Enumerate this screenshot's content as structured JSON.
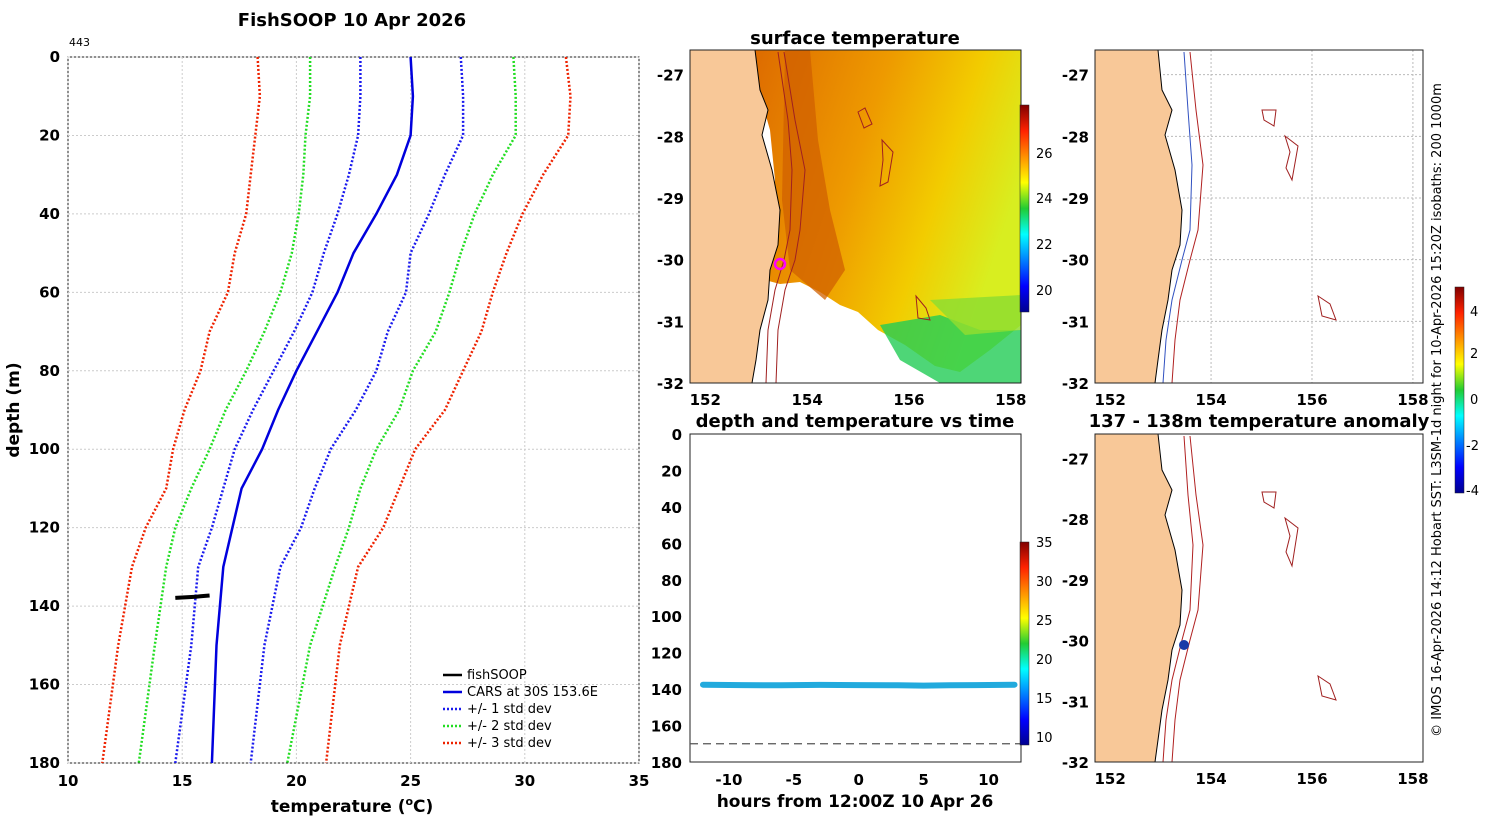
{
  "header": {
    "title": "FishSOOP 10 Apr 2026",
    "count": "443"
  },
  "credit": "© IMOS 16-Apr-2026 14:12 Hobart SST: L3SM-1d night for 10-Apr-2026 15:20Z isobaths: 200  1000m",
  "profile": {
    "xlabel": "temperature (",
    "xlabel_sup": "o",
    "xlabel_tail": "C)",
    "ylabel": "depth (m)",
    "xticks": [
      "10",
      "15",
      "20",
      "25",
      "30",
      "35"
    ],
    "yticks": [
      "0",
      "20",
      "40",
      "60",
      "80",
      "100",
      "120",
      "140",
      "160",
      "180"
    ],
    "legend": [
      "fishSOOP",
      "CARS at 30S 153.6E",
      "+/- 1 std dev",
      "+/- 2 std dev",
      "+/- 3 std dev"
    ]
  },
  "sst_map": {
    "title": "surface temperature",
    "xticks": [
      "152",
      "154",
      "156",
      "158"
    ],
    "yticks": [
      "-27",
      "-28",
      "-29",
      "-30",
      "-31",
      "-32"
    ],
    "cbar_ticks": [
      "26",
      "24",
      "22",
      "20"
    ]
  },
  "iso_map": {
    "xticks": [
      "152",
      "154",
      "156",
      "158"
    ],
    "yticks": [
      "-27",
      "-28",
      "-29",
      "-30",
      "-31",
      "-32"
    ]
  },
  "time_plot": {
    "title": "depth and temperature vs time",
    "xlabel": "hours from 12:00Z 10 Apr 26",
    "xticks": [
      "-10",
      "-5",
      "0",
      "5",
      "10"
    ],
    "yticks": [
      "0",
      "20",
      "40",
      "60",
      "80",
      "100",
      "120",
      "140",
      "160",
      "180"
    ],
    "cbar_ticks": [
      "35",
      "30",
      "25",
      "20",
      "15",
      "10"
    ]
  },
  "anomaly_map": {
    "title": "137 - 138m temperature anomaly",
    "xticks": [
      "152",
      "154",
      "156",
      "158"
    ],
    "yticks": [
      "-27",
      "-28",
      "-29",
      "-30",
      "-31",
      "-32"
    ],
    "cbar_ticks": [
      "4",
      "2",
      "0",
      "-2",
      "-4"
    ]
  },
  "colors": {
    "cars": "#0000dd",
    "std1": "#1a1aee",
    "std2": "#22dd22",
    "std3": "#ee2200",
    "land": "#f8c898",
    "fishsoop": "#000000",
    "time_series": "#22aadd",
    "anomaly_marker": "#1a3aa8"
  },
  "chart_data": [
    {
      "type": "line",
      "title": "FishSOOP 10 Apr 2026",
      "xlabel": "temperature (oC)",
      "ylabel": "depth (m)",
      "xlim": [
        10,
        35
      ],
      "ylim": [
        180,
        0
      ],
      "grid": true,
      "legend_position": "bottom-right",
      "series": [
        {
          "name": "CARS at 30S 153.6E",
          "style": "solid",
          "x": [
            25.0,
            25.1,
            25.0,
            24.4,
            23.5,
            22.5,
            21.8,
            20.9,
            20.0,
            19.2,
            18.5,
            17.6,
            17.2,
            16.8,
            16.5,
            16.3
          ],
          "y": [
            0,
            10,
            20,
            30,
            40,
            50,
            60,
            70,
            80,
            90,
            100,
            110,
            120,
            130,
            150,
            180
          ]
        },
        {
          "name": "+/- 1 std dev",
          "style": "dotted",
          "x": [
            27.2,
            27.3,
            27.3,
            26.5,
            25.8,
            25.0,
            24.8,
            24.0,
            23.5,
            22.6,
            21.5,
            20.8,
            20.2,
            19.3,
            18.6,
            18.0
          ],
          "y": [
            0,
            10,
            20,
            30,
            40,
            50,
            60,
            70,
            80,
            90,
            100,
            110,
            120,
            130,
            150,
            180
          ]
        },
        {
          "name": "+/- 1 std dev",
          "style": "dotted",
          "x": [
            22.8,
            22.8,
            22.7,
            22.3,
            21.8,
            21.2,
            20.7,
            19.9,
            19.0,
            18.1,
            17.3,
            16.8,
            16.3,
            15.7,
            15.4,
            14.7
          ],
          "y": [
            0,
            10,
            20,
            30,
            40,
            50,
            60,
            70,
            80,
            90,
            100,
            110,
            120,
            130,
            150,
            180
          ]
        },
        {
          "name": "+/- 2 std dev",
          "style": "dotted",
          "x": [
            29.5,
            29.6,
            29.6,
            28.6,
            27.8,
            27.2,
            26.7,
            26.1,
            25.1,
            24.5,
            23.5,
            22.8,
            22.3,
            21.7,
            20.6,
            19.6
          ],
          "y": [
            0,
            10,
            20,
            30,
            40,
            50,
            60,
            70,
            80,
            90,
            100,
            110,
            120,
            130,
            150,
            180
          ]
        },
        {
          "name": "+/- 2 std dev",
          "style": "dotted",
          "x": [
            20.6,
            20.6,
            20.4,
            20.3,
            20.1,
            19.8,
            19.3,
            18.6,
            17.8,
            16.9,
            16.2,
            15.4,
            14.7,
            14.3,
            13.8,
            13.1
          ],
          "y": [
            0,
            10,
            20,
            30,
            40,
            50,
            60,
            70,
            80,
            90,
            100,
            110,
            120,
            130,
            150,
            180
          ]
        },
        {
          "name": "+/- 3 std dev",
          "style": "dotted",
          "x": [
            31.8,
            32.0,
            31.9,
            30.8,
            29.9,
            29.2,
            28.6,
            28.1,
            27.3,
            26.5,
            25.2,
            24.5,
            23.8,
            22.7,
            21.9,
            21.3
          ],
          "y": [
            0,
            10,
            20,
            30,
            40,
            50,
            60,
            70,
            80,
            90,
            100,
            110,
            120,
            130,
            150,
            180
          ]
        },
        {
          "name": "+/- 3 std dev",
          "style": "dotted",
          "x": [
            18.3,
            18.4,
            18.2,
            18.0,
            17.8,
            17.3,
            17.0,
            16.2,
            15.8,
            15.1,
            14.6,
            14.3,
            13.4,
            12.8,
            12.2,
            11.5
          ],
          "y": [
            0,
            10,
            20,
            30,
            40,
            50,
            60,
            70,
            80,
            90,
            100,
            110,
            120,
            130,
            150,
            180
          ]
        },
        {
          "name": "fishSOOP",
          "style": "solid",
          "x": [
            14.7,
            15.0,
            15.3,
            15.6,
            15.8,
            16.0,
            16.2
          ],
          "y": [
            137.9,
            137.8,
            137.7,
            137.6,
            137.5,
            137.4,
            137.3
          ]
        }
      ]
    },
    {
      "type": "heatmap",
      "title": "surface temperature",
      "xlabel": "",
      "ylabel": "",
      "xlim": [
        151.7,
        158.2
      ],
      "ylim": [
        -32,
        -26.6
      ],
      "colorbar": {
        "min": 19,
        "max": 28,
        "ticks": [
          20,
          22,
          24,
          26
        ]
      },
      "marker": {
        "lon": 153.6,
        "lat": -30.05
      }
    },
    {
      "type": "map",
      "title": "",
      "xlim": [
        151.7,
        158.2
      ],
      "ylim": [
        -32,
        -26.6
      ],
      "isobaths": [
        200,
        1000
      ]
    },
    {
      "type": "scatter",
      "title": "depth and temperature vs time",
      "xlabel": "hours from 12:00Z 10 Apr 26",
      "ylabel": "",
      "xlim": [
        -13,
        12.5
      ],
      "ylim": [
        180,
        0
      ],
      "colorbar": {
        "min": 9,
        "max": 35,
        "ticks": [
          10,
          15,
          20,
          25,
          30,
          35
        ]
      },
      "reference_depth": 170,
      "series": [
        {
          "x": [
            -12,
            -9,
            -6,
            -3,
            0,
            3,
            5,
            7,
            9,
            12
          ],
          "y": [
            137.6,
            137.8,
            137.9,
            137.7,
            137.8,
            137.9,
            138.1,
            137.9,
            137.8,
            137.6
          ],
          "temperature": 15.5
        }
      ]
    },
    {
      "type": "map",
      "title": "137 - 138m temperature anomaly",
      "xlim": [
        151.7,
        158.2
      ],
      "ylim": [
        -32,
        -26.6
      ],
      "colorbar": {
        "min": -4,
        "max": 5,
        "ticks": [
          -4,
          -2,
          0,
          2,
          4
        ]
      },
      "marker": {
        "lon": 153.55,
        "lat": -30.05,
        "anomaly": -3.6
      }
    }
  ]
}
